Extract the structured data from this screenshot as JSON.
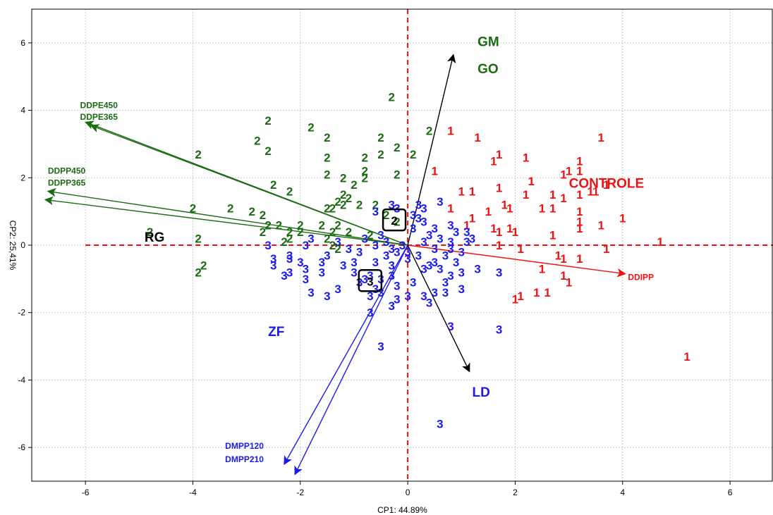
{
  "colors": {
    "group1": "#ee1111",
    "group2": "#1a6b12",
    "group3": "#1a1aee",
    "axis_black": "#000000",
    "centroid_dash": "#ee1111"
  },
  "chart_data": {
    "type": "scatter",
    "subtype": "biplot",
    "xlabel": "CP1: 44.89%",
    "ylabel": "CP2: 25,41%",
    "xlim": [
      -7,
      6.8
    ],
    "ylim": [
      -7,
      7
    ],
    "xticks": [
      -6,
      -4,
      -2,
      0,
      2,
      4,
      6
    ],
    "yticks": [
      -6,
      -4,
      -2,
      0,
      2,
      4,
      6
    ],
    "xtick_labels": [
      "-6",
      "-4",
      "-2",
      "0",
      "2",
      "4",
      "6"
    ],
    "ytick_labels": [
      "-6",
      "-4",
      "-2",
      "0",
      "2",
      "4",
      "6"
    ],
    "grid": true,
    "reference_lines": {
      "x": 0,
      "y": 0,
      "style": "dashed"
    },
    "series": [
      {
        "marker": "1",
        "color": "#ee1111",
        "points": [
          [
            0.8,
            3.4
          ],
          [
            1.3,
            3.2
          ],
          [
            1.7,
            2.7
          ],
          [
            1.6,
            2.5
          ],
          [
            2.2,
            2.6
          ],
          [
            3.2,
            2.5
          ],
          [
            3.6,
            3.2
          ],
          [
            3.0,
            2.2
          ],
          [
            0.5,
            2.2
          ],
          [
            2.9,
            2.1
          ],
          [
            3.2,
            2.2
          ],
          [
            1.7,
            1.7
          ],
          [
            2.3,
            1.9
          ],
          [
            3.5,
            1.6
          ],
          [
            3.7,
            1.8
          ],
          [
            1.0,
            1.6
          ],
          [
            1.2,
            1.6
          ],
          [
            1.8,
            1.2
          ],
          [
            2.2,
            1.5
          ],
          [
            2.7,
            1.5
          ],
          [
            2.9,
            1.4
          ],
          [
            3.2,
            1.5
          ],
          [
            3.4,
            1.6
          ],
          [
            1.5,
            1.0
          ],
          [
            1.9,
            1.1
          ],
          [
            2.5,
            1.1
          ],
          [
            2.7,
            1.1
          ],
          [
            3.2,
            1.0
          ],
          [
            0.8,
            1.1
          ],
          [
            1.2,
            0.8
          ],
          [
            1.6,
            0.5
          ],
          [
            1.7,
            0.4
          ],
          [
            1.9,
            0.5
          ],
          [
            2.0,
            0.4
          ],
          [
            3.2,
            0.5
          ],
          [
            3.6,
            0.6
          ],
          [
            4.0,
            0.8
          ],
          [
            3.2,
            0.7
          ],
          [
            2.7,
            0.3
          ],
          [
            1.1,
            0.6
          ],
          [
            1.7,
            0.0
          ],
          [
            2.1,
            -0.1
          ],
          [
            2.8,
            -0.3
          ],
          [
            2.9,
            -0.4
          ],
          [
            3.2,
            -0.4
          ],
          [
            3.7,
            -0.1
          ],
          [
            4.7,
            0.1
          ],
          [
            2.5,
            -0.7
          ],
          [
            2.9,
            -0.9
          ],
          [
            3.0,
            -1.1
          ],
          [
            2.1,
            -1.5
          ],
          [
            2.4,
            -1.4
          ],
          [
            2.6,
            -1.4
          ],
          [
            2.0,
            -1.6
          ],
          [
            5.2,
            -3.3
          ]
        ]
      },
      {
        "marker": "2",
        "color": "#1a6b12",
        "points": [
          [
            -0.3,
            4.4
          ],
          [
            -2.6,
            3.7
          ],
          [
            -1.8,
            3.5
          ],
          [
            -2.8,
            3.1
          ],
          [
            -1.5,
            3.2
          ],
          [
            -2.6,
            2.8
          ],
          [
            -3.9,
            2.7
          ],
          [
            -0.5,
            3.2
          ],
          [
            -0.2,
            2.9
          ],
          [
            0.4,
            3.4
          ],
          [
            -1.5,
            2.6
          ],
          [
            -0.8,
            2.6
          ],
          [
            -0.5,
            2.7
          ],
          [
            0.1,
            2.7
          ],
          [
            -1.5,
            2.1
          ],
          [
            -1.2,
            2.0
          ],
          [
            -0.8,
            2.2
          ],
          [
            -0.8,
            2.0
          ],
          [
            -0.2,
            2.1
          ],
          [
            -1.0,
            1.8
          ],
          [
            -2.5,
            1.8
          ],
          [
            -2.2,
            1.6
          ],
          [
            -1.2,
            1.5
          ],
          [
            -1.1,
            1.4
          ],
          [
            -1.3,
            1.3
          ],
          [
            -1.2,
            1.2
          ],
          [
            -0.9,
            1.2
          ],
          [
            -0.6,
            1.2
          ],
          [
            -1.3,
            0.6
          ],
          [
            -1.5,
            1.1
          ],
          [
            -1.4,
            1.1
          ],
          [
            -2.9,
            1.0
          ],
          [
            -3.3,
            1.1
          ],
          [
            -4.0,
            1.1
          ],
          [
            -2.7,
            0.9
          ],
          [
            -2.6,
            0.6
          ],
          [
            -2.4,
            0.6
          ],
          [
            -2.0,
            0.6
          ],
          [
            -1.6,
            0.6
          ],
          [
            -2.7,
            0.4
          ],
          [
            -2.2,
            0.4
          ],
          [
            -2.0,
            0.4
          ],
          [
            -1.4,
            0.4
          ],
          [
            -1.1,
            0.4
          ],
          [
            -0.7,
            0.3
          ],
          [
            -2.3,
            0.1
          ],
          [
            -2.2,
            0.2
          ],
          [
            -1.5,
            0.2
          ],
          [
            -1.4,
            0.0
          ],
          [
            -1.3,
            -0.1
          ],
          [
            -3.9,
            0.2
          ],
          [
            -4.8,
            0.4
          ],
          [
            -3.8,
            -0.6
          ],
          [
            -3.9,
            -0.8
          ],
          [
            -0.4,
            0.9
          ],
          [
            -0.2,
            0.7
          ]
        ]
      },
      {
        "marker": "3",
        "color": "#1a1aee",
        "points": [
          [
            -0.3,
            1.2
          ],
          [
            0.2,
            1.2
          ],
          [
            0.3,
            1.1
          ],
          [
            0.6,
            1.3
          ],
          [
            0.1,
            0.9
          ],
          [
            0.2,
            0.8
          ],
          [
            0.3,
            0.7
          ],
          [
            0.8,
            0.6
          ],
          [
            0.9,
            0.4
          ],
          [
            0.1,
            0.5
          ],
          [
            0.4,
            0.3
          ],
          [
            1.1,
            0.4
          ],
          [
            1.2,
            0.2
          ],
          [
            0.6,
            0.2
          ],
          [
            0.8,
            0.1
          ],
          [
            1.1,
            0.1
          ],
          [
            0.3,
            0.1
          ],
          [
            0.5,
            -0.1
          ],
          [
            0.8,
            -0.1
          ],
          [
            1.0,
            -0.2
          ],
          [
            -0.2,
            1.1
          ],
          [
            -0.6,
            1.0
          ],
          [
            -0.5,
            0.3
          ],
          [
            -0.4,
            0.1
          ],
          [
            -0.6,
            0.0
          ],
          [
            -0.8,
            0.2
          ],
          [
            -0.9,
            -0.2
          ],
          [
            -1.1,
            -0.1
          ],
          [
            -1.3,
            0.1
          ],
          [
            -1.5,
            -0.3
          ],
          [
            -1.8,
            0.2
          ],
          [
            -1.9,
            0.0
          ],
          [
            -2.2,
            -0.4
          ],
          [
            -1.9,
            -0.7
          ],
          [
            -1.6,
            -0.8
          ],
          [
            -1.2,
            -0.6
          ],
          [
            -1.0,
            -0.8
          ],
          [
            -0.7,
            -0.9
          ],
          [
            -0.5,
            -1.0
          ],
          [
            -0.3,
            -0.9
          ],
          [
            -0.2,
            -1.2
          ],
          [
            0.1,
            -1.1
          ],
          [
            0.3,
            -0.7
          ],
          [
            0.5,
            -0.5
          ],
          [
            0.7,
            -0.3
          ],
          [
            0.9,
            -0.5
          ],
          [
            1.0,
            -0.8
          ],
          [
            0.7,
            -1.1
          ],
          [
            0.5,
            -1.4
          ],
          [
            0.3,
            -1.5
          ],
          [
            0.0,
            -1.5
          ],
          [
            -0.2,
            -1.6
          ],
          [
            -0.5,
            -1.4
          ],
          [
            -0.7,
            -1.5
          ],
          [
            -1.3,
            -1.3
          ],
          [
            -1.5,
            -1.5
          ],
          [
            -1.8,
            -1.4
          ],
          [
            -1.9,
            -1.0
          ],
          [
            -2.2,
            -0.8
          ],
          [
            -2.5,
            -0.6
          ],
          [
            -2.3,
            -0.9
          ],
          [
            -2.5,
            -0.4
          ],
          [
            -2.6,
            0.0
          ],
          [
            -2.2,
            -0.3
          ],
          [
            -2.0,
            -0.5
          ],
          [
            -1.6,
            -0.5
          ],
          [
            -1.0,
            -0.5
          ],
          [
            -0.6,
            -0.5
          ],
          [
            -0.3,
            -0.6
          ],
          [
            -0.4,
            -0.3
          ],
          [
            -0.2,
            -0.2
          ],
          [
            -0.1,
            0.0
          ],
          [
            0.0,
            -0.2
          ],
          [
            0.2,
            -0.3
          ],
          [
            0.4,
            -0.6
          ],
          [
            0.6,
            -0.7
          ],
          [
            0.8,
            -0.9
          ],
          [
            1.3,
            -0.7
          ],
          [
            1.7,
            -0.8
          ],
          [
            1.0,
            -1.3
          ],
          [
            0.7,
            -1.4
          ],
          [
            0.4,
            -1.7
          ],
          [
            -0.9,
            -1.1
          ],
          [
            -0.3,
            -1.8
          ],
          [
            -0.7,
            -2.0
          ],
          [
            -0.6,
            -1.3
          ],
          [
            0.8,
            -2.4
          ],
          [
            1.7,
            -2.5
          ],
          [
            -0.5,
            -3.0
          ],
          [
            0.6,
            -5.3
          ],
          [
            0.0,
            -0.4
          ],
          [
            -0.8,
            -1.0
          ],
          [
            -0.3,
            -0.1
          ],
          [
            0.5,
            0.5
          ]
        ]
      }
    ],
    "centroids": [
      {
        "marker": "2",
        "x": -0.25,
        "y": 0.75
      },
      {
        "marker": "3",
        "x": -0.7,
        "y": -1.05
      }
    ],
    "vectors": [
      {
        "labels": [
          "DDPE450"
        ],
        "color": "#1a6b12",
        "x": -6.0,
        "y": 3.65,
        "label_at": [
          -6.1,
          4.15
        ]
      },
      {
        "labels": [
          "DDPE365"
        ],
        "color": "#1a6b12",
        "x": -5.9,
        "y": 3.55,
        "label_at": [
          -6.1,
          3.8
        ]
      },
      {
        "labels": [
          "DDPP450"
        ],
        "color": "#1a6b12",
        "x": -6.7,
        "y": 1.6,
        "label_at": [
          -6.7,
          2.2
        ]
      },
      {
        "labels": [
          "DDPP365"
        ],
        "color": "#1a6b12",
        "x": -6.75,
        "y": 1.35,
        "label_at": [
          -6.7,
          1.85
        ]
      },
      {
        "labels": [
          "DMPP120"
        ],
        "color": "#1a1aee",
        "x": -2.3,
        "y": -6.5,
        "label_at": [
          -3.4,
          -5.95
        ]
      },
      {
        "labels": [
          "DMPP210"
        ],
        "color": "#1a1aee",
        "x": -2.1,
        "y": -6.8,
        "label_at": [
          -3.4,
          -6.35
        ]
      },
      {
        "labels": [
          "DDIPP"
        ],
        "color": "#ee1111",
        "x": 4.05,
        "y": -0.85,
        "label_at": [
          4.1,
          -0.95
        ]
      },
      {
        "labels": [
          "GM",
          "GO"
        ],
        "color": "#000000",
        "x": 0.85,
        "y": 5.65,
        "label_at": [
          1.3,
          5.7
        ]
      },
      {
        "labels": [
          "LD"
        ],
        "color": "#000000",
        "x": 1.15,
        "y": -3.75,
        "label_at": [
          1.2,
          -4.35
        ]
      }
    ],
    "group_labels": [
      {
        "text": "GM",
        "color": "#1a6b12",
        "x": 1.3,
        "y": 6.05
      },
      {
        "text": "GO",
        "color": "#1a6b12",
        "x": 1.3,
        "y": 5.25
      },
      {
        "text": "CONTROLE",
        "color": "#ee1111",
        "x": 3.0,
        "y": 1.85
      },
      {
        "text": "RG",
        "color": "#000000",
        "x": -4.9,
        "y": 0.25
      },
      {
        "text": "ZF",
        "color": "#1a1aee",
        "x": -2.6,
        "y": -2.55
      },
      {
        "text": "LD",
        "color": "#1a1aee",
        "x": 1.2,
        "y": -4.35
      }
    ]
  }
}
